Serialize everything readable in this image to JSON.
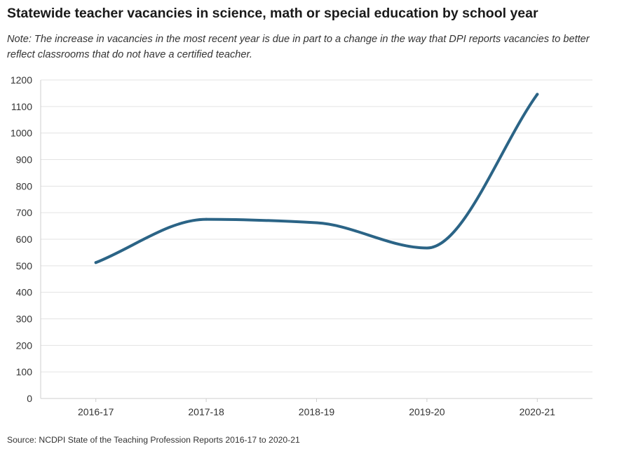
{
  "title": "Statewide teacher vacancies in science, math or special education by school year",
  "subtitle": "Note: The increase in vacancies in the most recent year is due in part to a change in the way that DPI reports vacancies to better reflect classrooms that do not have a certified teacher.",
  "source": "Source: NCDPI State of the Teaching Profession Reports 2016-17 to 2020-21",
  "chart_data": {
    "type": "line",
    "title": "Statewide teacher vacancies in science, math or special education by school year",
    "xlabel": "",
    "ylabel": "",
    "categories": [
      "2016-17",
      "2017-18",
      "2018-19",
      "2019-20",
      "2020-21"
    ],
    "series": [
      {
        "values": [
          512,
          675,
          662,
          567,
          1146
        ],
        "color": "#2b6486"
      }
    ],
    "yticks": [
      0,
      100,
      200,
      300,
      400,
      500,
      600,
      700,
      800,
      900,
      1000,
      1100,
      1200
    ],
    "ylim": [
      0,
      1200
    ],
    "grid": true,
    "legend": "none"
  }
}
